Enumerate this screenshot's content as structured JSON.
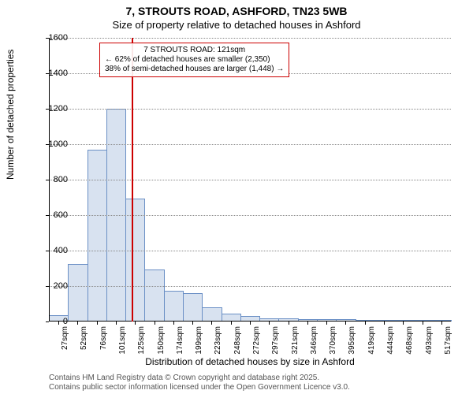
{
  "title_main": "7, STROUTS ROAD, ASHFORD, TN23 5WB",
  "title_sub": "Size of property relative to detached houses in Ashford",
  "y_label": "Number of detached properties",
  "x_label": "Distribution of detached houses by size in Ashford",
  "chart": {
    "type": "bar",
    "bar_color": "#d8e2f0",
    "bar_border": "#6a8fc5",
    "background": "#ffffff",
    "grid_color": "#888888",
    "ylim": [
      0,
      1600
    ],
    "ytick_step": 200,
    "x_categories": [
      "27sqm",
      "52sqm",
      "76sqm",
      "101sqm",
      "125sqm",
      "150sqm",
      "174sqm",
      "199sqm",
      "223sqm",
      "248sqm",
      "272sqm",
      "297sqm",
      "321sqm",
      "346sqm",
      "370sqm",
      "395sqm",
      "419sqm",
      "444sqm",
      "468sqm",
      "493sqm",
      "517sqm"
    ],
    "values": [
      30,
      320,
      965,
      1195,
      690,
      290,
      170,
      155,
      75,
      40,
      25,
      15,
      15,
      10,
      8,
      7,
      6,
      5,
      4,
      3,
      3
    ],
    "reference_x": 121,
    "x_min": 15,
    "x_max": 530
  },
  "callout": {
    "line1": "7 STROUTS ROAD: 121sqm",
    "line2": "← 62% of detached houses are smaller (2,350)",
    "line3": "38% of semi-detached houses are larger (1,448) →"
  },
  "footer": {
    "line1": "Contains HM Land Registry data © Crown copyright and database right 2025.",
    "line2": "Contains public sector information licensed under the Open Government Licence v3.0."
  }
}
